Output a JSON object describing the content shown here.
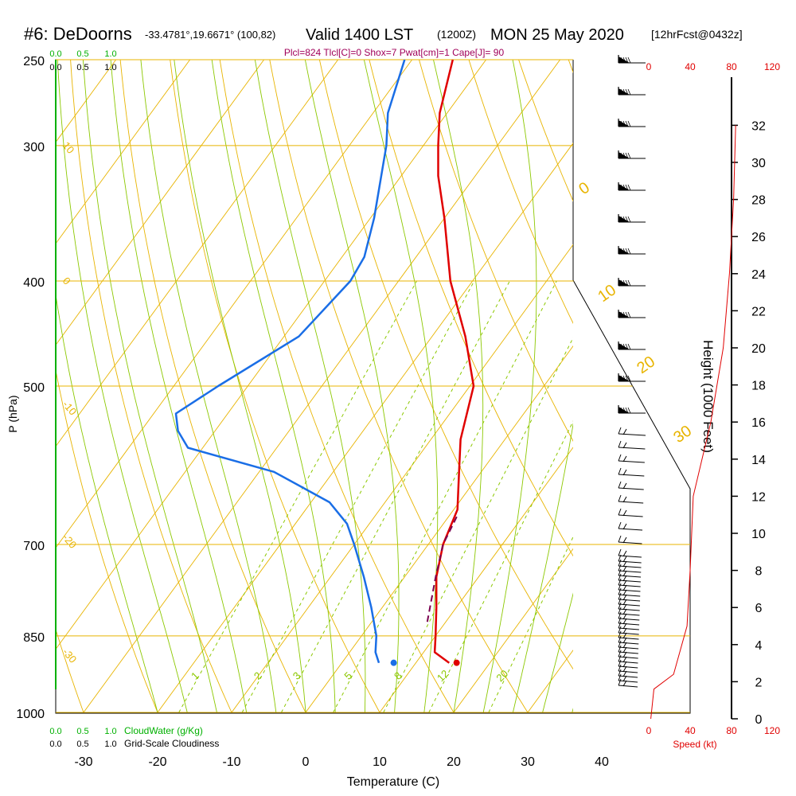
{
  "header": {
    "station": "#6: DeDoorns",
    "location": "-33.4781°,19.6671° (100,82)",
    "valid": "Valid 1400 LST",
    "zulu": "(1200Z)",
    "date": "MON 25 May 2020",
    "forecast": "[12hrFcst@0432z]",
    "indices": "Plcl=824 Tlcl[C]=0 Shox=7 Pwat[cm]=1 Cape[J]= 90"
  },
  "scales": {
    "cloudwater_label": "CloudWater (g/Kg)",
    "cloudiness_label": "Grid-Scale Cloudiness",
    "top_green_ticks": [
      "0.0",
      "0.5",
      "1.0"
    ],
    "top_black_ticks": [
      "0.0",
      "0.5",
      "1.0"
    ],
    "bottom_green_ticks": [
      "0.0",
      "0.5",
      "1.0"
    ],
    "bottom_black_ticks": [
      "0.0",
      "0.5",
      "1.0"
    ],
    "speed_ticks": [
      "0",
      "40",
      "80",
      "120"
    ],
    "speed_label": "Speed (kt)"
  },
  "colors": {
    "isobar": "#e8b400",
    "isotherm": "#e8b400",
    "dry_adiabat": "#e8b400",
    "moist_adiabat": "#8cc800",
    "mixing_ratio": "#8cc800",
    "temperature": "#e00000",
    "dewpoint": "#1a6ee6",
    "parcel": "#7a0050",
    "speed": "#e00000",
    "green": "#00b000",
    "title": "#000000",
    "indices": "#a0005a"
  },
  "chart_data": {
    "type": "line",
    "xlabel": "Temperature (C)",
    "ylabel": "P (hPa)",
    "y2label": "Height (1000 Feet)",
    "x_ticks": [
      -30,
      -20,
      -10,
      0,
      10,
      20,
      30,
      40
    ],
    "p_ticks": [
      250,
      300,
      400,
      500,
      700,
      850,
      1000
    ],
    "height_ticks_kft": [
      0,
      2,
      4,
      6,
      8,
      10,
      12,
      14,
      16,
      18,
      20,
      22,
      24,
      26,
      28,
      30,
      32
    ],
    "ylim": [
      1000,
      250
    ],
    "isotherm_labels": [
      {
        "label": "10",
        "p": 300
      },
      {
        "label": "0",
        "p": 400
      },
      {
        "label": "-10",
        "p": 520
      },
      {
        "label": "-20",
        "p": 690
      },
      {
        "label": "-30",
        "p": 880
      }
    ],
    "moist_labels": [
      {
        "label": "0"
      },
      {
        "label": "10"
      },
      {
        "label": "20"
      },
      {
        "label": "30"
      }
    ],
    "mixing_ratio_labels": [
      "1",
      "2",
      "3",
      "5",
      "8",
      "12",
      "20"
    ],
    "series": [
      {
        "key": "temperature",
        "points": [
          [
            900,
            14.5
          ],
          [
            880,
            11.5
          ],
          [
            850,
            10.0
          ],
          [
            800,
            7.3
          ],
          [
            750,
            4.3
          ],
          [
            700,
            2.0
          ],
          [
            650,
            0.5
          ],
          [
            600,
            -3.0
          ],
          [
            560,
            -6.0
          ],
          [
            500,
            -9.5
          ],
          [
            450,
            -15.5
          ],
          [
            400,
            -23.0
          ],
          [
            350,
            -30.0
          ],
          [
            320,
            -35.0
          ],
          [
            300,
            -38.0
          ],
          [
            280,
            -41.0
          ],
          [
            250,
            -44.5
          ]
        ]
      },
      {
        "key": "dewpoint",
        "points": [
          [
            900,
            5.0
          ],
          [
            880,
            3.5
          ],
          [
            850,
            2.0
          ],
          [
            800,
            -1.5
          ],
          [
            750,
            -5.5
          ],
          [
            700,
            -10.0
          ],
          [
            670,
            -13.0
          ],
          [
            640,
            -17.5
          ],
          [
            600,
            -28.0
          ],
          [
            570,
            -42.0
          ],
          [
            550,
            -45.0
          ],
          [
            530,
            -47.0
          ],
          [
            500,
            -44.0
          ],
          [
            450,
            -38.0
          ],
          [
            400,
            -36.5
          ],
          [
            380,
            -37.0
          ],
          [
            350,
            -39.5
          ],
          [
            300,
            -45.0
          ],
          [
            280,
            -48.0
          ],
          [
            250,
            -51.0
          ]
        ]
      },
      {
        "key": "parcel",
        "points": [
          [
            825,
            7.5
          ],
          [
            790,
            6.0
          ],
          [
            750,
            4.2
          ],
          [
            700,
            2.0
          ],
          [
            655,
            1.0
          ]
        ]
      }
    ],
    "surface": {
      "p": 900,
      "temperature": 15.5,
      "dewpoint": 7.0
    },
    "wind_speed_profile": [
      [
        0,
        2
      ],
      [
        1.6,
        5
      ],
      [
        2.4,
        24
      ],
      [
        5,
        37
      ],
      [
        8,
        40
      ],
      [
        12,
        43
      ],
      [
        16,
        60
      ],
      [
        20,
        72
      ],
      [
        24,
        78
      ],
      [
        28,
        82
      ],
      [
        32,
        84
      ]
    ]
  }
}
